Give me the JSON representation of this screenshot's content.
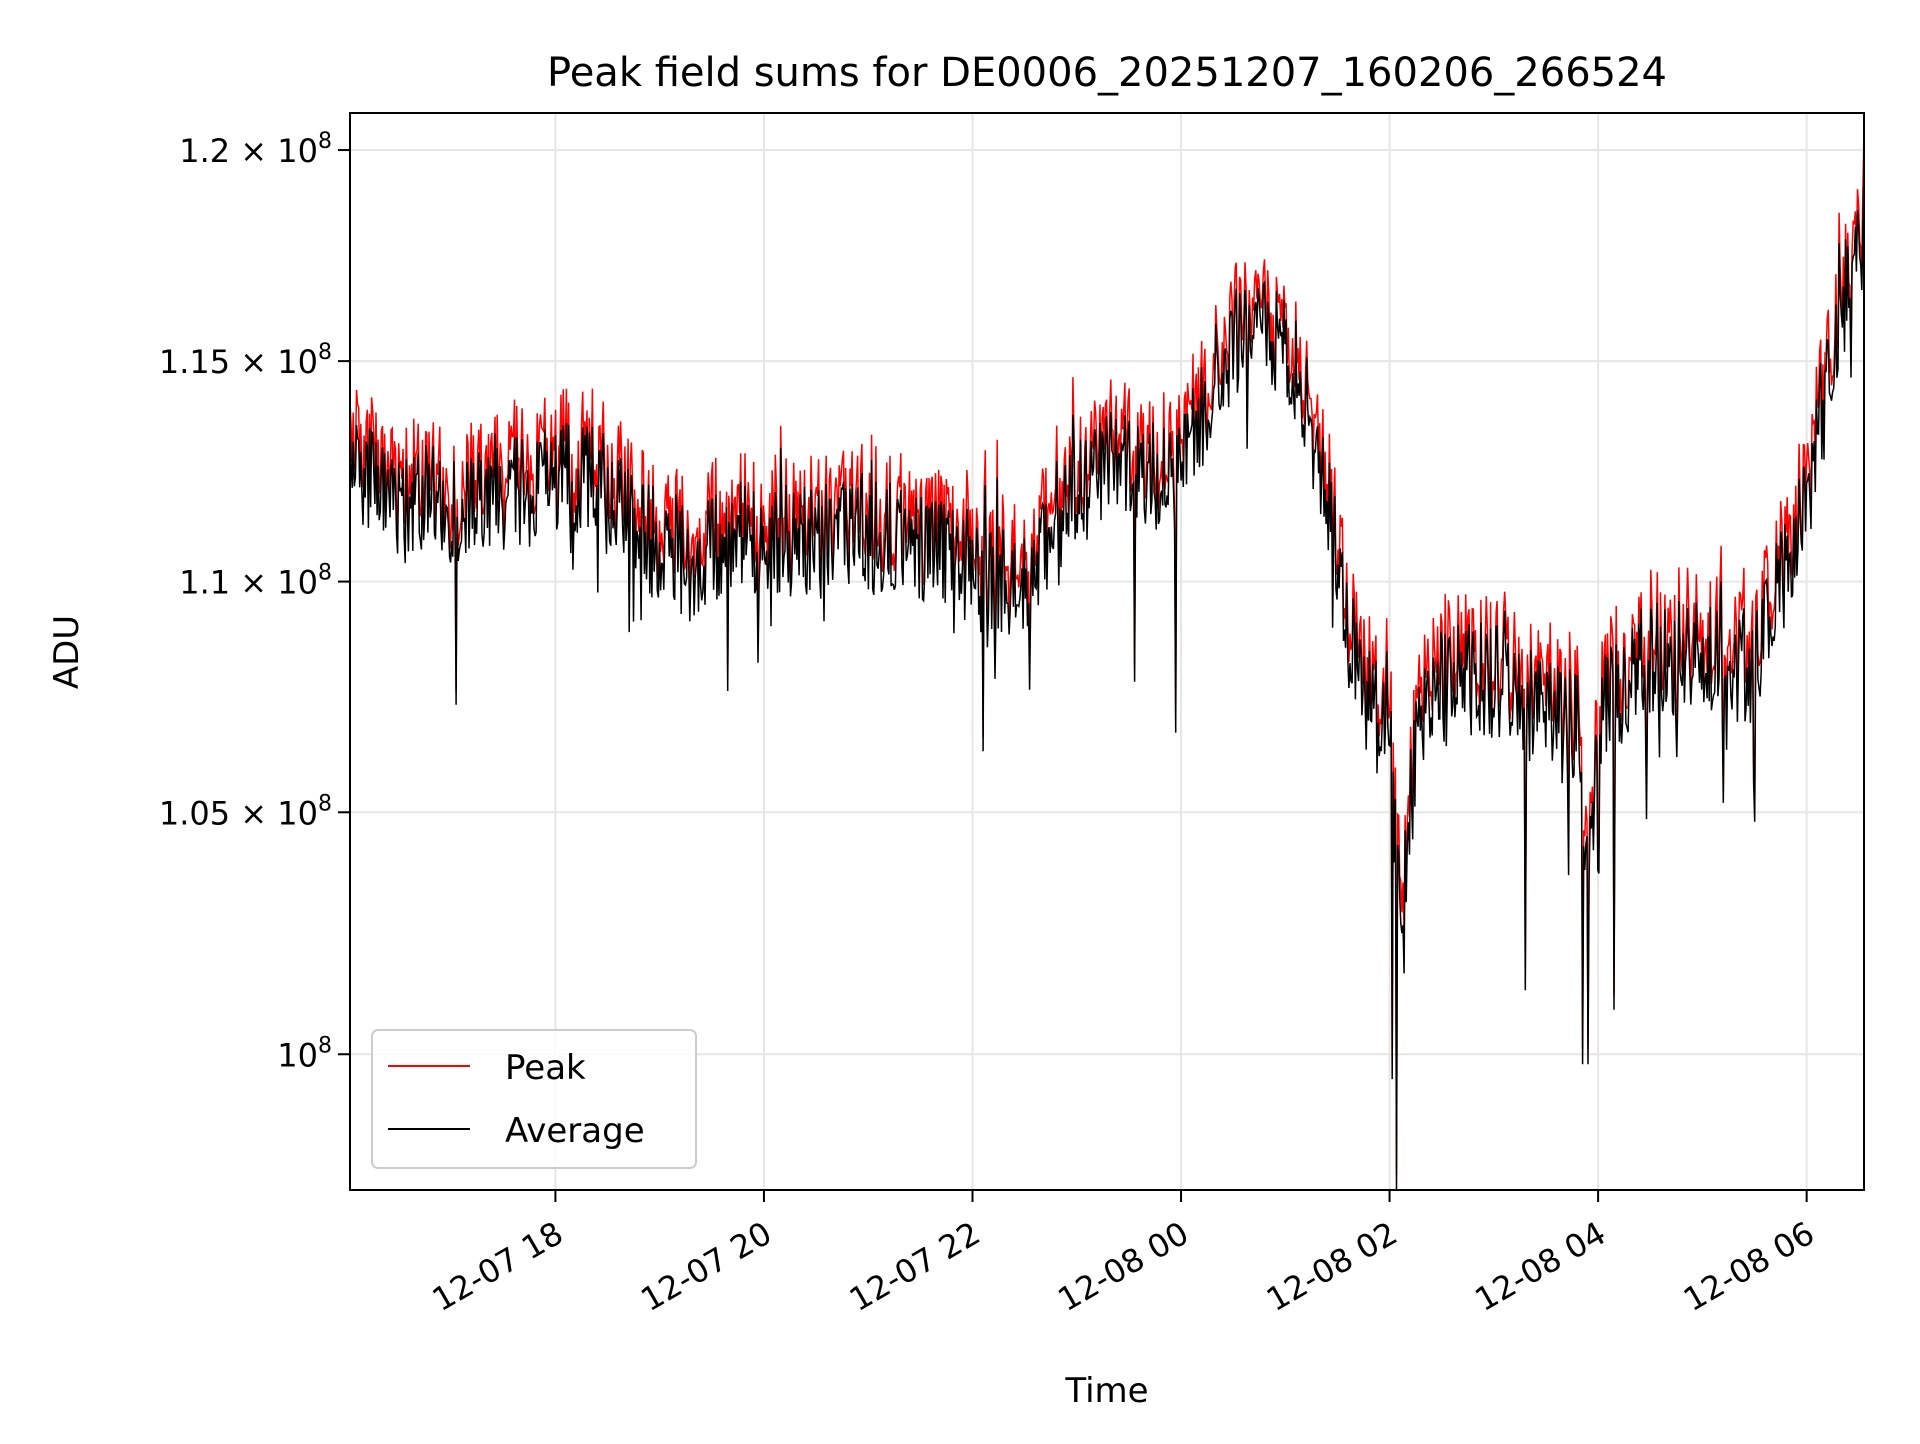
{
  "chart_data": {
    "type": "line",
    "title": "Peak field sums for DE0006_20251207_160206_266524",
    "xlabel": "Time",
    "ylabel": "ADU",
    "yscale": "log",
    "xlim_hours": [
      16.03,
      30.55
    ],
    "ylim": [
      97300000,
      120900000
    ],
    "x_ticks": [
      {
        "hour": 18,
        "label": "12-07 18"
      },
      {
        "hour": 20,
        "label": "12-07 20"
      },
      {
        "hour": 22,
        "label": "12-07 22"
      },
      {
        "hour": 24,
        "label": "12-08 00"
      },
      {
        "hour": 26,
        "label": "12-08 02"
      },
      {
        "hour": 28,
        "label": "12-08 04"
      },
      {
        "hour": 30,
        "label": "12-08 06"
      }
    ],
    "y_ticks": [
      {
        "value": 100000000,
        "mantissa": "10",
        "exp": "8"
      },
      {
        "value": 105000000,
        "mantissa": "1.05 × 10",
        "exp": "8"
      },
      {
        "value": 110000000,
        "mantissa": "1.1 × 10",
        "exp": "8"
      },
      {
        "value": 115000000,
        "mantissa": "1.15 × 10",
        "exp": "8"
      },
      {
        "value": 120000000,
        "mantissa": "1.2 × 10",
        "exp": "8"
      }
    ],
    "grid": true,
    "legend_position": "lower-left",
    "series": [
      {
        "name": "Peak",
        "color": "#ff0000"
      },
      {
        "name": "Average",
        "color": "#000000"
      }
    ],
    "baseline_hours": [
      16.03,
      16.5,
      17.0,
      17.5,
      18.0,
      18.3,
      18.6,
      19.0,
      19.3,
      19.6,
      20.0,
      20.5,
      21.0,
      21.5,
      22.0,
      22.3,
      22.7,
      23.0,
      23.3,
      23.6,
      24.0,
      24.3,
      24.6,
      25.0,
      25.2,
      25.4,
      25.6,
      25.8,
      26.0,
      26.1,
      26.3,
      26.6,
      27.0,
      27.5,
      27.8,
      27.9,
      28.0,
      28.2,
      28.5,
      29.0,
      29.5,
      30.0,
      30.3,
      30.55
    ],
    "average_baseline": [
      112400000,
      111900000,
      111700000,
      111900000,
      112200000,
      112400000,
      111600000,
      110800000,
      110400000,
      110900000,
      111000000,
      110900000,
      111000000,
      110900000,
      110300000,
      110000000,
      110500000,
      111900000,
      112800000,
      112200000,
      112500000,
      114500000,
      115800000,
      115500000,
      114000000,
      112000000,
      108800000,
      107300000,
      106800000,
      103000000,
      107300000,
      107800000,
      107800000,
      107000000,
      106700000,
      103000000,
      106900000,
      107600000,
      108400000,
      108200000,
      108200000,
      111800000,
      115700000,
      118700000
    ],
    "peak_offset": 300000,
    "noise_amplitude": 1300000,
    "spikes": [
      {
        "hour": 17.05,
        "value": 107300000
      },
      {
        "hour": 19.65,
        "value": 107600000
      },
      {
        "hour": 22.1,
        "value": 106300000
      },
      {
        "hour": 23.55,
        "value": 107800000
      },
      {
        "hour": 23.95,
        "value": 106700000
      },
      {
        "hour": 26.07,
        "value": 97300000
      },
      {
        "hour": 26.03,
        "value": 99500000
      },
      {
        "hour": 27.3,
        "value": 101300000
      },
      {
        "hour": 27.85,
        "value": 99800000
      },
      {
        "hour": 27.9,
        "value": 99800000
      },
      {
        "hour": 28.15,
        "value": 100900000
      },
      {
        "hour": 29.2,
        "value": 105200000
      },
      {
        "hour": 29.5,
        "value": 104800000
      }
    ]
  }
}
